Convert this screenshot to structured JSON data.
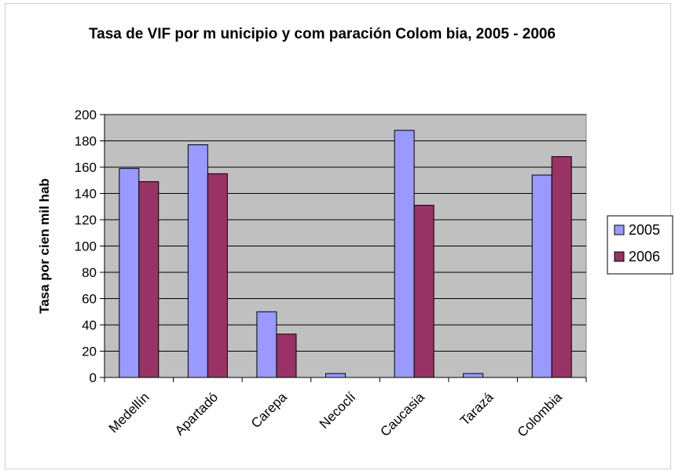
{
  "chart_data": {
    "type": "bar",
    "title": "Tasa  de VIF por m unicipio y com paración Colom bia, 2005 - 2006",
    "xlabel": "",
    "ylabel": "Tasa por cien mil hab",
    "categories": [
      "Medellín",
      "Apartadó",
      "Carepa",
      "Necoclí",
      "Caucasia",
      "Tarazá",
      "Colombia"
    ],
    "series": [
      {
        "name": "2005",
        "color": "#9999ff",
        "values": [
          159,
          177,
          50,
          3,
          188,
          3,
          154
        ]
      },
      {
        "name": "2006",
        "color": "#993366",
        "values": [
          149,
          155,
          33,
          0,
          131,
          0,
          168
        ]
      }
    ],
    "ylim": [
      0,
      200
    ],
    "yticks": [
      0,
      20,
      40,
      60,
      80,
      100,
      120,
      140,
      160,
      180,
      200
    ],
    "grid": true,
    "plot_background": "#c0c0c0",
    "legend_position": "right"
  }
}
